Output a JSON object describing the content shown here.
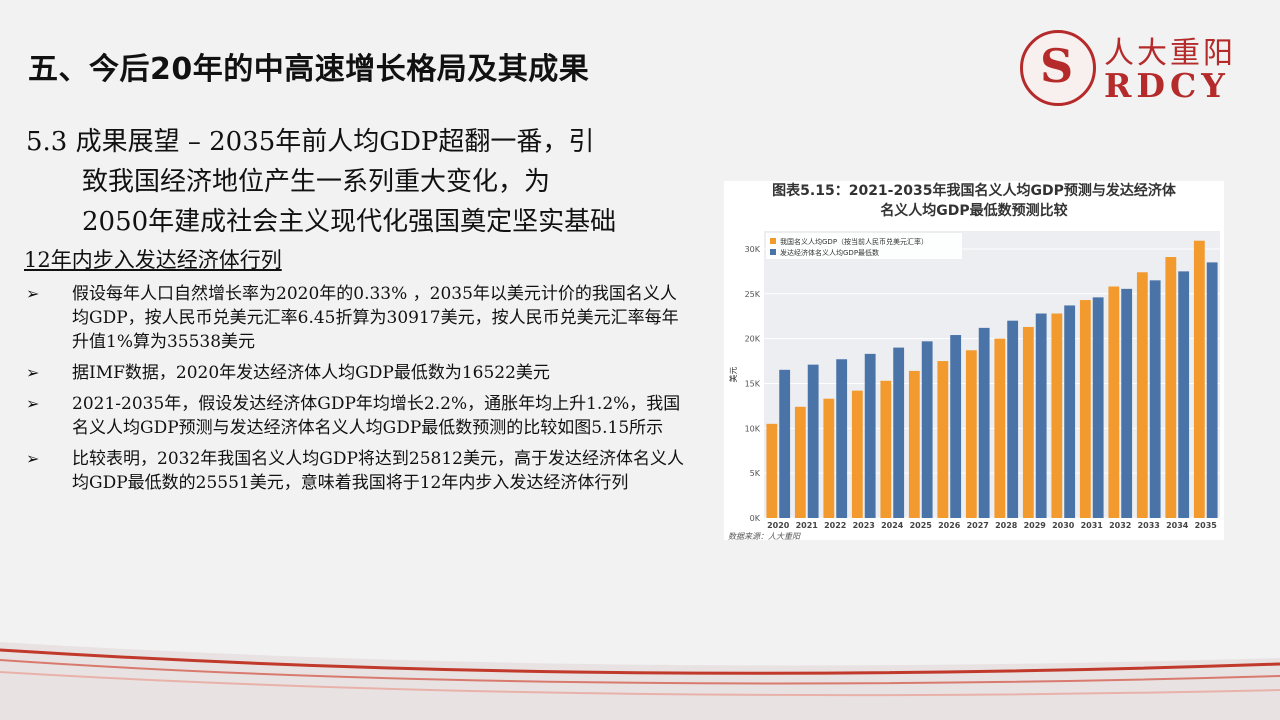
{
  "heading": "五、今后20年的中高速增长格局及其成果",
  "logo": {
    "cn": "人大重阳",
    "en": "RDCY"
  },
  "subtitle_lines": [
    "5.3 成果展望 – 2035年前人均GDP超翻一番，引",
    "致我国经济地位产生一系列重大变化，为",
    "2050年建成社会主义现代化强国奠定坚实基础"
  ],
  "section_title": "12年内步入发达经济体行列",
  "bullets": [
    "假设每年人口自然增长率为2020年的0.33% ，2035年以美元计价的我国名义人均GDP，按人民币兑美元汇率6.45折算为30917美元，按人民币兑美元汇率每年升值1%算为35538美元",
    "据IMF数据，2020年发达经济体人均GDP最低数为16522美元",
    "2021-2035年，假设发达经济体GDP年均增长2.2%，通胀年均上升1.2%，我国名义人均GDP预测与发达经济体名义人均GDP最低数预测的比较如图5.15所示",
    "比较表明，2032年我国名义人均GDP将达到25812美元，高于发达经济体名义人均GDP最低数的25551美元，意味着我国将于12年内步入发达经济体行列"
  ],
  "chart_data": {
    "type": "bar",
    "title_lines": [
      "图表5.15：2021-2035年我国名义人均GDP预测与发达经济体",
      "名义人均GDP最低数预测比较"
    ],
    "ylabel": "美元",
    "ylim": [
      0,
      32000
    ],
    "yticks": [
      0,
      5000,
      10000,
      15000,
      20000,
      25000,
      30000
    ],
    "ytick_labels": [
      "0K",
      "5K",
      "10K",
      "15K",
      "20K",
      "25K",
      "30K"
    ],
    "categories": [
      "2020",
      "2021",
      "2022",
      "2023",
      "2024",
      "2025",
      "2026",
      "2027",
      "2028",
      "2029",
      "2030",
      "2031",
      "2032",
      "2033",
      "2034",
      "2035"
    ],
    "series": [
      {
        "name": "我国名义人均GDP（按当前人民币兑美元汇率）",
        "color": "#f39a2e",
        "values": [
          10500,
          12400,
          13300,
          14200,
          15300,
          16400,
          17500,
          18700,
          20000,
          21300,
          22800,
          24300,
          25812,
          27400,
          29100,
          30917
        ]
      },
      {
        "name": "发达经济体名义人均GDP最低数",
        "color": "#4a74a8",
        "values": [
          16522,
          17100,
          17700,
          18300,
          19000,
          19700,
          20400,
          21200,
          22000,
          22800,
          23700,
          24600,
          25551,
          26500,
          27500,
          28500
        ]
      }
    ],
    "legend_position": "top-left",
    "grid": true,
    "source": "数据来源：人大重阳"
  }
}
